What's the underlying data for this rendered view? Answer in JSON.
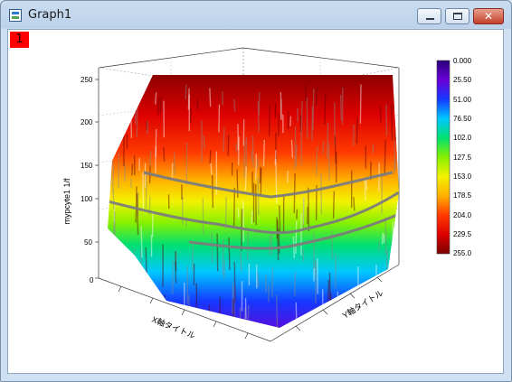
{
  "window": {
    "title": "Graph1"
  },
  "layer": {
    "label": "1"
  },
  "plot": {
    "z_axis": {
      "label": "mypcyte1 1/f",
      "ticks": [
        "250",
        "200",
        "150",
        "100",
        "50",
        "0"
      ]
    },
    "x_axis": {
      "label": "X軸タイトル"
    },
    "y_axis": {
      "label": "Y軸タイトル"
    }
  },
  "colorbar": {
    "ticks": [
      "0.000",
      "25.50",
      "51.00",
      "76.50",
      "102.0",
      "127.5",
      "153.0",
      "178.5",
      "204.0",
      "229.5",
      "255.0"
    ],
    "colors": [
      "#000000",
      "#2a0078",
      "#6a00d8",
      "#1538ff",
      "#00c8ff",
      "#00e070",
      "#86f000",
      "#f2f200",
      "#ffb000",
      "#ff3a00",
      "#dd0000",
      "#8a0000"
    ]
  }
}
